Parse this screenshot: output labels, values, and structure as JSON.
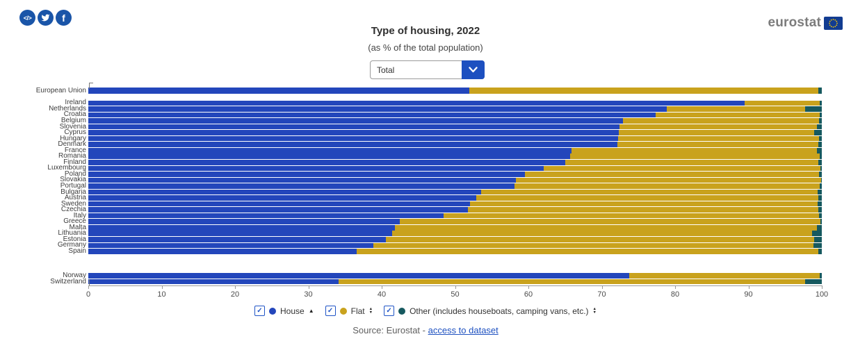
{
  "social_icons": [
    {
      "name": "embed-code-icon",
      "glyph": "</>"
    },
    {
      "name": "twitter-icon",
      "glyph": "twitter-bird"
    },
    {
      "name": "facebook-icon",
      "glyph": "f"
    }
  ],
  "header": {
    "title": "Type of housing, 2022",
    "subtitle": "(as % of the total population)"
  },
  "filter": {
    "value": "Total"
  },
  "logo": {
    "text": "eurostat"
  },
  "colors": {
    "house": "#2346bb",
    "flat": "#c9a21d",
    "other": "#16595f",
    "accent_blue": "#1f54c6",
    "social_blue": "#1a55a8",
    "link_blue": "#1d50c0",
    "eu_flag_blue": "#123c91",
    "eu_star_yellow": "#ffcc00"
  },
  "chart_data": {
    "type": "bar",
    "orientation": "horizontal",
    "stacked": true,
    "title": "Type of housing, 2022",
    "subtitle": "(as % of the total population)",
    "xlim": [
      0,
      100
    ],
    "x_ticks": [
      0,
      10,
      20,
      30,
      40,
      50,
      60,
      70,
      80,
      90,
      100
    ],
    "grid": false,
    "legend_position": "bottom",
    "series": [
      {
        "name": "House",
        "color": "#2346bb",
        "sort_icon": "up",
        "checked": true
      },
      {
        "name": "Flat",
        "color": "#c9a21d",
        "sort_icon": "updown",
        "checked": true
      },
      {
        "name": "Other (includes houseboats, camping vans, etc.)",
        "color": "#16595f",
        "sort_icon": "updown",
        "checked": true
      }
    ],
    "groups": [
      {
        "rows": [
          {
            "label": "European Union",
            "values": [
              51.9,
              47.6,
              0.5
            ]
          }
        ]
      },
      {
        "rows": [
          {
            "label": "Ireland",
            "values": [
              89.5,
              10.2,
              0.3
            ]
          },
          {
            "label": "Netherlands",
            "values": [
              78.9,
              18.8,
              2.3
            ]
          },
          {
            "label": "Croatia",
            "values": [
              77.3,
              22.4,
              0.3
            ]
          },
          {
            "label": "Belgium",
            "values": [
              72.9,
              26.7,
              0.4
            ]
          },
          {
            "label": "Slovenia",
            "values": [
              72.4,
              26.9,
              0.7
            ]
          },
          {
            "label": "Cyprus",
            "values": [
              72.3,
              26.7,
              1.0
            ]
          },
          {
            "label": "Hungary",
            "values": [
              72.2,
              27.4,
              0.4
            ]
          },
          {
            "label": "Denmark",
            "values": [
              72.1,
              27.4,
              0.5
            ]
          },
          {
            "label": "France",
            "values": [
              65.9,
              33.4,
              0.7
            ]
          },
          {
            "label": "Romania",
            "values": [
              65.7,
              34.0,
              0.3
            ]
          },
          {
            "label": "Finland",
            "values": [
              65.0,
              34.5,
              0.5
            ]
          },
          {
            "label": "Luxembourg",
            "values": [
              62.1,
              37.7,
              0.2
            ]
          },
          {
            "label": "Poland",
            "values": [
              59.5,
              40.1,
              0.4
            ]
          },
          {
            "label": "Slovakia",
            "values": [
              58.3,
              41.6,
              0.1
            ]
          },
          {
            "label": "Portugal",
            "values": [
              58.1,
              41.6,
              0.3
            ]
          },
          {
            "label": "Bulgaria",
            "values": [
              53.6,
              45.8,
              0.6
            ]
          },
          {
            "label": "Austria",
            "values": [
              52.9,
              46.6,
              0.5
            ]
          },
          {
            "label": "Sweden",
            "values": [
              52.0,
              47.4,
              0.6
            ]
          },
          {
            "label": "Czechia",
            "values": [
              51.8,
              47.7,
              0.5
            ]
          },
          {
            "label": "Italy",
            "values": [
              48.4,
              51.2,
              0.4
            ]
          },
          {
            "label": "Greece",
            "values": [
              42.5,
              57.3,
              0.2
            ]
          },
          {
            "label": "Malta",
            "values": [
              41.8,
              57.5,
              0.7
            ]
          },
          {
            "label": "Lithuania",
            "values": [
              41.4,
              57.3,
              1.3
            ]
          },
          {
            "label": "Estonia",
            "values": [
              40.6,
              58.4,
              1.0
            ]
          },
          {
            "label": "Germany",
            "values": [
              38.9,
              60.0,
              1.1
            ]
          },
          {
            "label": "Spain",
            "values": [
              36.6,
              62.9,
              0.5
            ]
          }
        ]
      },
      {
        "rows": [
          {
            "label": "Norway",
            "values": [
              73.7,
              26.0,
              0.3
            ]
          },
          {
            "label": "Switzerland",
            "values": [
              34.1,
              63.6,
              2.3
            ]
          }
        ]
      }
    ]
  },
  "source": {
    "prefix": "Source: Eurostat - ",
    "link_text": "access to dataset"
  }
}
